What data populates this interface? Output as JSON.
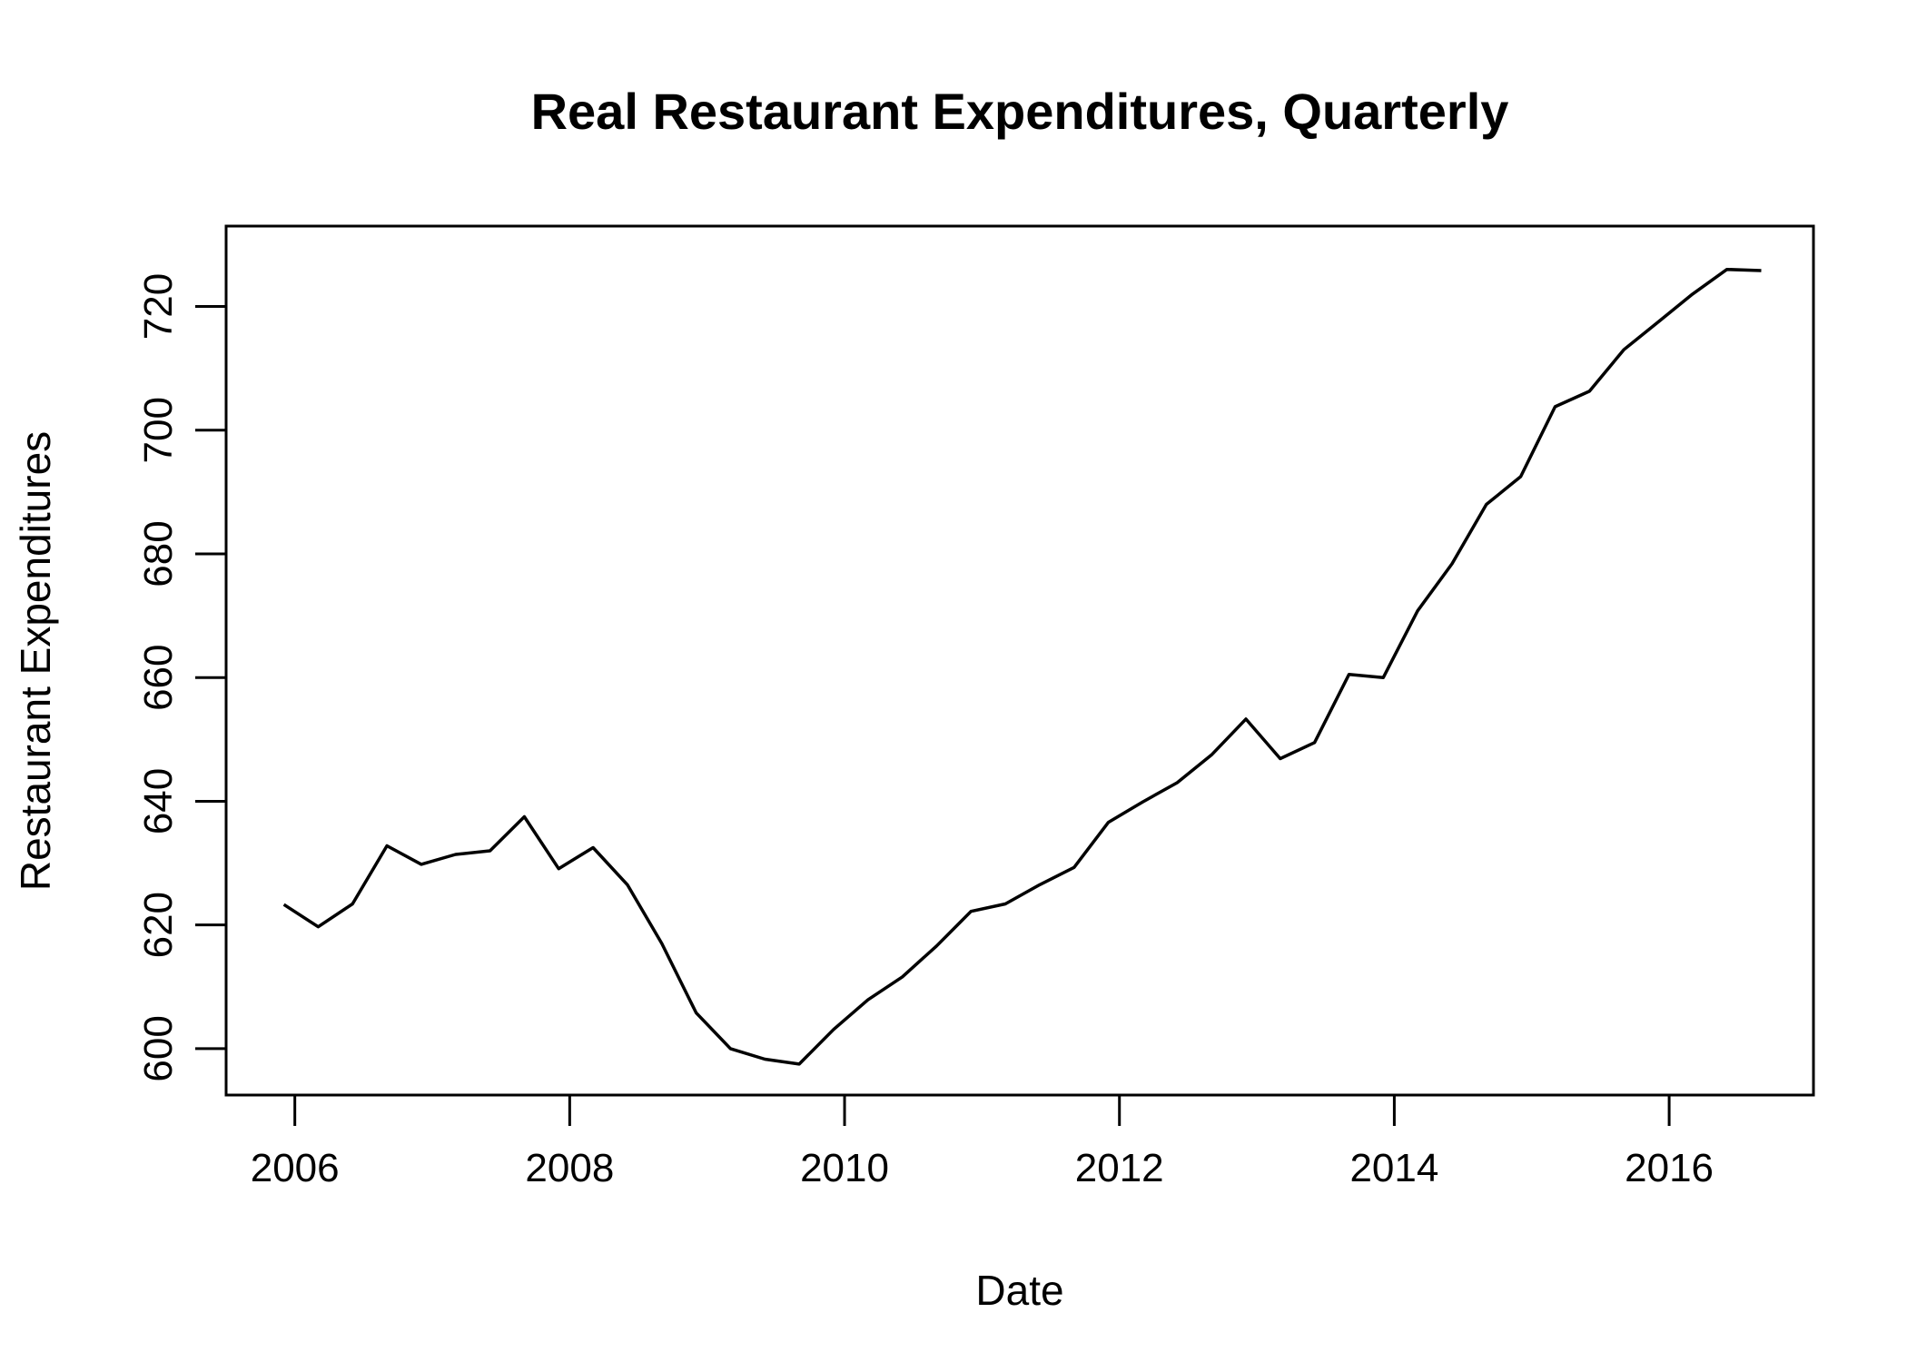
{
  "chart_data": {
    "type": "line",
    "title": "Real Restaurant Expenditures, Quarterly",
    "xlabel": "Date",
    "ylabel": "Restaurant Expenditures",
    "xlim": [
      2005.5,
      2017.05
    ],
    "ylim": [
      592.5,
      733.0
    ],
    "x_ticks": [
      2006,
      2008,
      2010,
      2012,
      2014,
      2016
    ],
    "x_tick_labels": [
      "2006",
      "2008",
      "2010",
      "2012",
      "2014",
      "2016"
    ],
    "y_ticks": [
      600,
      620,
      640,
      660,
      680,
      700,
      720
    ],
    "y_tick_labels": [
      "600",
      "620",
      "640",
      "660",
      "680",
      "700",
      "720"
    ],
    "grid": false,
    "legend": "none",
    "line_color": "#000000",
    "series": [
      {
        "x": [
          2005.92,
          2006.17,
          2006.42,
          2006.67,
          2006.92,
          2007.17,
          2007.42,
          2007.67,
          2007.92,
          2008.17,
          2008.42,
          2008.67,
          2008.92,
          2009.17,
          2009.42,
          2009.67,
          2009.92,
          2010.17,
          2010.42,
          2010.67,
          2010.92,
          2011.17,
          2011.42,
          2011.67,
          2011.92,
          2012.17,
          2012.42,
          2012.67,
          2012.92,
          2013.17,
          2013.42,
          2013.67,
          2013.92,
          2014.17,
          2014.42,
          2014.67,
          2014.92,
          2015.17,
          2015.42,
          2015.67,
          2015.92,
          2016.17,
          2016.42,
          2016.67
        ],
        "y": [
          623.3,
          619.7,
          623.4,
          632.8,
          629.8,
          631.4,
          632.0,
          637.5,
          629.1,
          632.5,
          626.5,
          617.0,
          605.8,
          600.0,
          598.3,
          597.5,
          603.1,
          607.9,
          611.6,
          616.6,
          622.2,
          623.4,
          626.5,
          629.3,
          636.6,
          639.9,
          643.0,
          647.5,
          653.3,
          646.9,
          649.5,
          660.5,
          660.0,
          670.8,
          678.4,
          688.0,
          692.5,
          703.8,
          706.3,
          713.0,
          717.5,
          722.0,
          726.0,
          725.8
        ]
      }
    ]
  }
}
